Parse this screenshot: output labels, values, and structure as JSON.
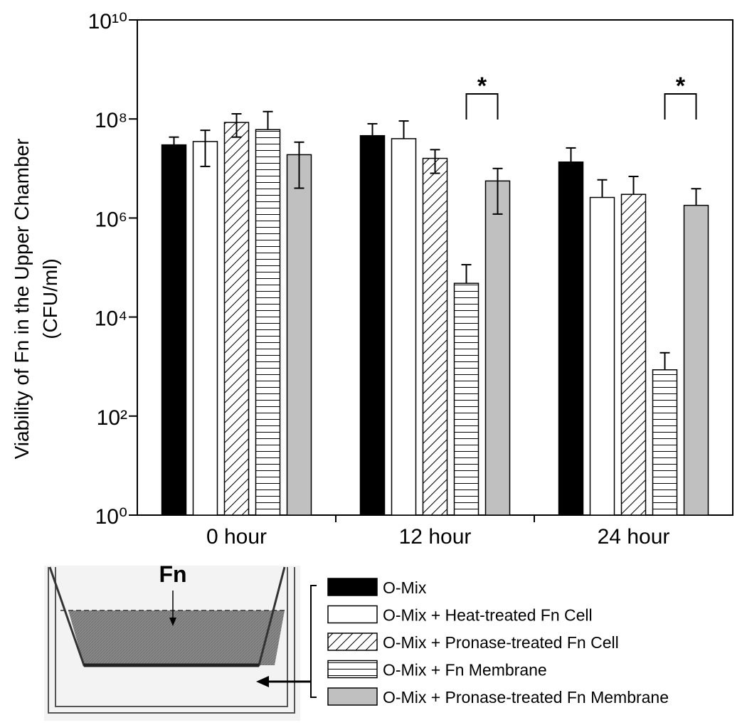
{
  "chart_data": {
    "type": "bar",
    "ylabel": [
      "Viability of Fn in the Upper Chamber",
      "(CFU/ml)"
    ],
    "categories": [
      "0 hour",
      "12 hour",
      "24 hour"
    ],
    "log_scale": true,
    "ylim": [
      1,
      10000000000
    ],
    "yticks": [
      {
        "value": 1,
        "label": "10⁰"
      },
      {
        "value": 100,
        "label": "10²"
      },
      {
        "value": 10000,
        "label": "10⁴"
      },
      {
        "value": 1000000,
        "label": "10⁶"
      },
      {
        "value": 100000000,
        "label": "10⁸"
      },
      {
        "value": 10000000000,
        "label": "10¹⁰"
      }
    ],
    "series": [
      {
        "name": "O-Mix",
        "color": "#000000",
        "pattern": "solid",
        "values": [
          30000000,
          46000000,
          13500000
        ],
        "errors": [
          13000000,
          34000000,
          12500000
        ]
      },
      {
        "name": "O-Mix + Heat-treated Fn Cell",
        "color": "#ffffff",
        "pattern": "solid",
        "values": [
          35000000,
          40000000,
          2600000
        ],
        "errors": [
          24000000,
          51000000,
          3300000
        ]
      },
      {
        "name": "O-Mix + Pronase-treated Fn Cell",
        "color": "#ffffff",
        "pattern": "diagonal",
        "values": [
          85000000,
          16000000,
          3000000
        ],
        "errors": [
          42000000,
          8000000,
          3900000
        ]
      },
      {
        "name": "O-Mix + Fn Membrane",
        "color": "#ffffff",
        "pattern": "horizontal",
        "values": [
          61000000,
          48000,
          860
        ],
        "errors": [
          80000000,
          66000,
          1040
        ]
      },
      {
        "name": "O-Mix + Pronase-treated Fn Membrane",
        "color": "#c0c0c0",
        "pattern": "solid",
        "values": [
          19000000,
          5600000,
          1800000
        ],
        "errors": [
          15000000,
          4400000,
          2100000
        ]
      }
    ],
    "annotations": [
      {
        "category": "12 hour",
        "label": "*"
      },
      {
        "category": "24 hour",
        "label": "*"
      }
    ],
    "diagram_label": "Fn"
  }
}
